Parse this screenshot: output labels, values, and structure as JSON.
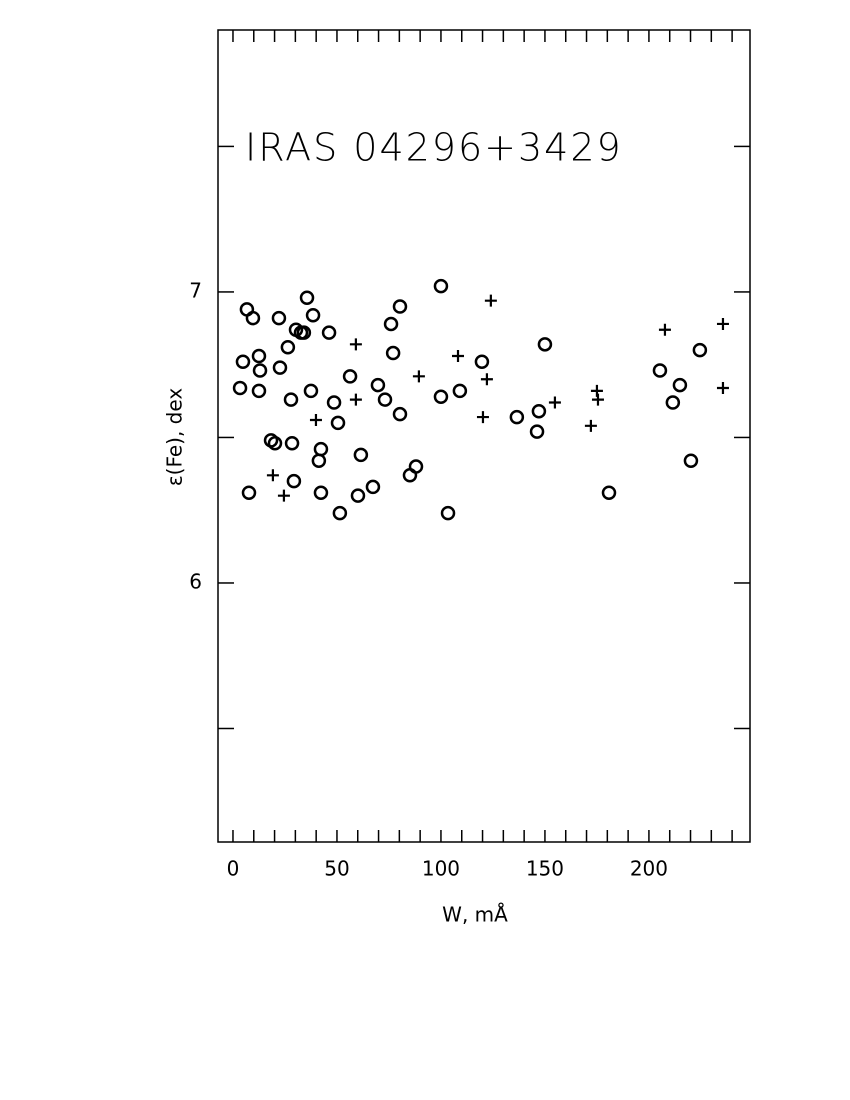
{
  "chart_data": {
    "type": "scatter",
    "title": "IRAS 04296+3429",
    "xlabel": "W, mÅ",
    "ylabel": "ε(Fe), dex",
    "xlim": [
      -7.2,
      248.6
    ],
    "ylim": [
      5.11,
      7.9
    ],
    "xticks": [
      0,
      50,
      100,
      150,
      200
    ],
    "yticks": [
      6,
      7
    ],
    "xticks_minor": [
      0,
      10,
      20,
      30,
      40,
      50,
      60,
      70,
      80,
      90,
      100,
      110,
      120,
      130,
      140,
      150,
      160,
      170,
      180,
      190,
      200,
      210,
      220,
      230,
      240
    ],
    "yticks_minor": [
      5.5,
      6.5,
      7.5
    ],
    "series": [
      {
        "marker": "circle",
        "color": "#000000",
        "x": [
          3.4,
          4.8,
          6.7,
          7.7,
          9.6,
          12.5,
          13,
          12.5,
          18.3,
          20.2,
          22.1,
          22.6,
          26.4,
          27.9,
          28.4,
          29.3,
          30.3,
          32.7,
          34.1,
          35.6,
          37.5,
          38.5,
          41.3,
          42.3,
          42.3,
          46.2,
          48.6,
          50.5,
          51.4,
          56.3,
          60.1,
          61.5,
          67.3,
          69.7,
          73.1,
          76,
          77,
          80.3,
          80.3,
          85.1,
          88,
          100,
          100,
          103.4,
          109.1,
          119.7,
          136.5,
          146.2,
          147.1,
          150,
          180.8,
          205.3,
          211.5,
          214.9,
          220.2,
          224.5
        ],
        "values": [
          6.67,
          6.76,
          6.94,
          6.31,
          6.91,
          6.78,
          6.73,
          6.66,
          6.49,
          6.48,
          6.91,
          6.74,
          6.81,
          6.63,
          6.48,
          6.35,
          6.87,
          6.86,
          6.86,
          6.98,
          6.66,
          6.92,
          6.42,
          6.46,
          6.31,
          6.86,
          6.62,
          6.55,
          6.24,
          6.71,
          6.3,
          6.44,
          6.33,
          6.68,
          6.63,
          6.89,
          6.79,
          6.95,
          6.58,
          6.37,
          6.4,
          7.02,
          6.64,
          6.24,
          6.66,
          6.76,
          6.57,
          6.52,
          6.59,
          6.82,
          6.31,
          6.73,
          6.62,
          6.68,
          6.42,
          6.8
        ]
      },
      {
        "marker": "plus",
        "color": "#000000",
        "x": [
          19.2,
          24.5,
          39.9,
          59.1,
          59.1,
          89.4,
          108.2,
          122.1,
          120.2,
          124,
          154.8,
          172.1,
          175,
          175.5,
          207.7,
          235.6,
          235.6
        ],
        "values": [
          6.37,
          6.3,
          6.56,
          6.82,
          6.63,
          6.71,
          6.78,
          6.7,
          6.57,
          6.97,
          6.62,
          6.54,
          6.66,
          6.63,
          6.87,
          6.89,
          6.67
        ]
      }
    ]
  }
}
